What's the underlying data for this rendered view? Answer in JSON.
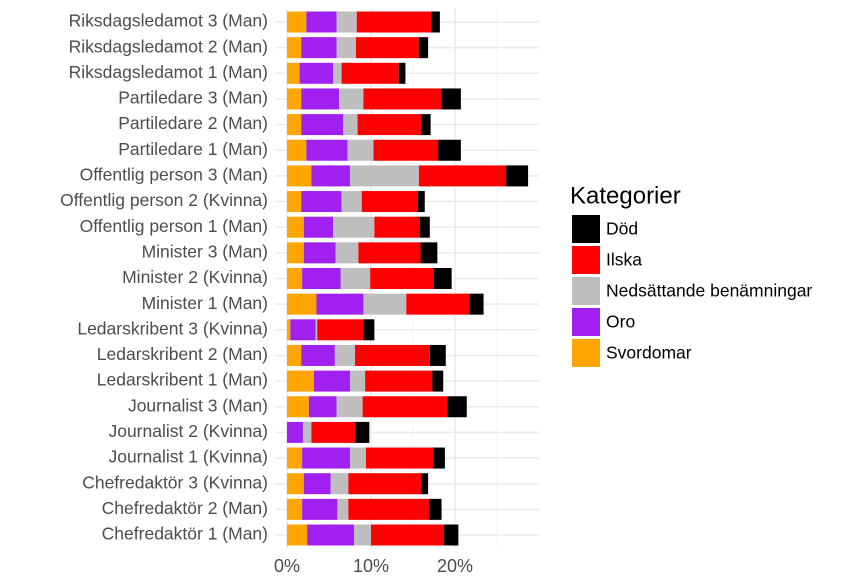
{
  "chart_data": {
    "type": "stacked-bar-horizontal",
    "categories": [
      "Riksdagsledamot 3 (Man)",
      "Riksdagsledamot 2 (Man)",
      "Riksdagsledamot 1 (Man)",
      "Partiledare 3 (Man)",
      "Partiledare 2 (Man)",
      "Partiledare 1 (Man)",
      "Offentlig person 3 (Man)",
      "Offentlig person 2 (Kvinna)",
      "Offentlig person 1 (Man)",
      "Minister 3 (Man)",
      "Minister 2 (Kvinna)",
      "Minister 1 (Man)",
      "Ledarskribent 3 (Kvinna)",
      "Ledarskribent 2 (Man)",
      "Ledarskribent 1 (Man)",
      "Journalist 3 (Man)",
      "Journalist 2 (Kvinna)",
      "Journalist 1 (Kvinna)",
      "Chefredaktör 3 (Kvinna)",
      "Chefredaktör 2 (Man)",
      "Chefredaktör 1 (Man)"
    ],
    "series": [
      {
        "name": "Svordomar",
        "color": "#ffa500",
        "values": [
          2.3,
          1.7,
          1.5,
          1.7,
          1.7,
          2.3,
          2.9,
          1.7,
          2.0,
          2.0,
          1.8,
          3.5,
          0.4,
          1.7,
          3.2,
          2.6,
          0,
          1.8,
          2.0,
          1.8,
          2.4
        ]
      },
      {
        "name": "Oro",
        "color": "#a020f0",
        "values": [
          3.6,
          4.2,
          4.0,
          4.5,
          5.0,
          4.9,
          4.6,
          4.8,
          3.5,
          3.8,
          4.6,
          5.6,
          3.0,
          4.0,
          4.3,
          3.3,
          1.9,
          5.7,
          3.2,
          4.2,
          5.6
        ]
      },
      {
        "name": "Nedsättande benämningar",
        "color": "#bebebe",
        "values": [
          2.4,
          2.3,
          1.0,
          2.9,
          1.7,
          3.1,
          8.2,
          2.4,
          4.9,
          2.7,
          3.5,
          5.1,
          0.2,
          2.4,
          1.8,
          3.1,
          1.0,
          1.9,
          2.1,
          1.3,
          2.0
        ]
      },
      {
        "name": "Ilska",
        "color": "#ff0000",
        "values": [
          8.9,
          7.5,
          6.8,
          9.3,
          7.6,
          7.7,
          10.4,
          6.7,
          5.4,
          7.4,
          7.6,
          7.5,
          5.5,
          8.9,
          8.0,
          10.1,
          5.2,
          8.0,
          8.7,
          9.6,
          8.7
        ]
      },
      {
        "name": "Död",
        "color": "#000000",
        "values": [
          1.0,
          1.1,
          0.8,
          2.3,
          1.1,
          2.7,
          2.6,
          0.8,
          1.2,
          2.0,
          2.1,
          1.7,
          1.3,
          1.9,
          1.3,
          2.3,
          1.7,
          1.4,
          0.8,
          1.5,
          1.7
        ]
      }
    ],
    "xlim": [
      0,
      30
    ],
    "xticks": [
      {
        "value": 0,
        "label": "0%"
      },
      {
        "value": 10,
        "label": "10%"
      },
      {
        "value": 20,
        "label": "20%"
      }
    ],
    "minor_xticks": [
      5,
      15,
      25
    ],
    "grid": true,
    "legend_title": "Kategorier",
    "legend": "right"
  }
}
